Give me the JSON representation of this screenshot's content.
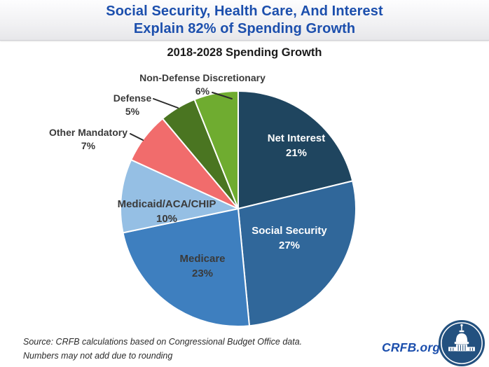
{
  "header": {
    "title_line1": "Social Security, Health Care, And Interest",
    "title_line2": "Explain 82% of Spending Growth",
    "title_color": "#1C4FAD"
  },
  "chart": {
    "subtitle": "2018-2028 Spending Growth"
  },
  "chart_data": {
    "type": "pie",
    "title": "2018-2028 Spending Growth",
    "categories": [
      "Net Interest",
      "Social Security",
      "Medicare",
      "Medicaid/ACA/CHIP",
      "Other Mandatory",
      "Defense",
      "Non-Defense Discretionary"
    ],
    "values": [
      21,
      27,
      23,
      10,
      7,
      5,
      6
    ],
    "colors": [
      "#1F455F",
      "#30679A",
      "#3E7FBF",
      "#95BFE4",
      "#F16C6C",
      "#4A7521",
      "#6FAC30"
    ],
    "start_angle_deg": 0,
    "direction": "clockwise",
    "slice_border_color": "#FFFFFF",
    "slices": [
      {
        "label": "Net Interest",
        "pct": "21%",
        "placement": "inside"
      },
      {
        "label": "Social Security",
        "pct": "27%",
        "placement": "inside"
      },
      {
        "label": "Medicare",
        "pct": "23%",
        "placement": "inside"
      },
      {
        "label": "Medicaid/ACA/CHIP",
        "pct": "10%",
        "placement": "inside"
      },
      {
        "label": "Other Mandatory",
        "pct": "7%",
        "placement": "outside"
      },
      {
        "label": "Defense",
        "pct": "5%",
        "placement": "outside"
      },
      {
        "label": "Non-Defense Discretionary",
        "pct": "6%",
        "placement": "outside"
      }
    ]
  },
  "footer": {
    "source_line1": "Source: CRFB calculations based on Congressional Budget Office data.",
    "source_line2": "Numbers may not add due to rounding",
    "site": "CRFB.org",
    "site_color": "#1C4FAD"
  },
  "logo": {
    "icon": "capitol-building",
    "bg_color": "#23517F"
  }
}
